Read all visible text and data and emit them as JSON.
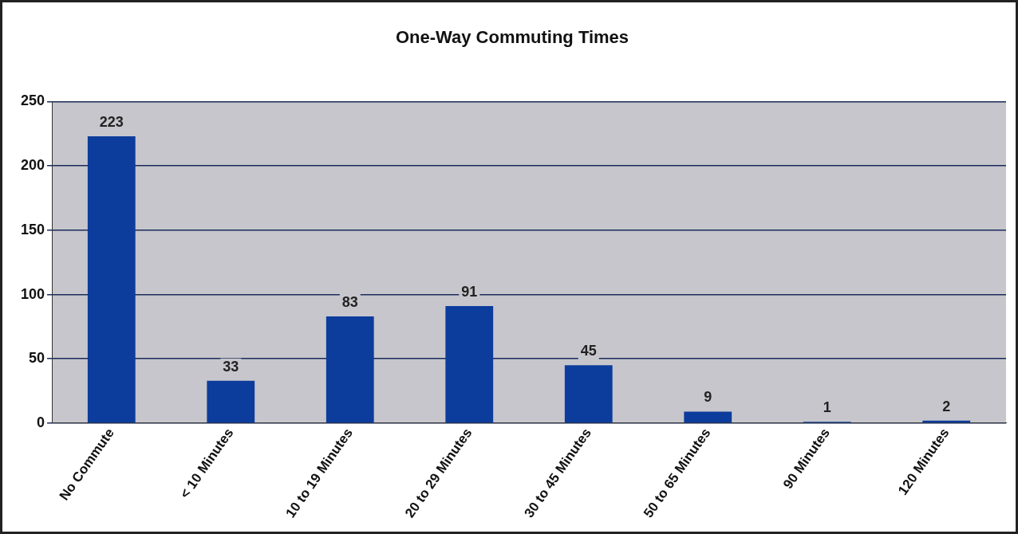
{
  "chart_data": {
    "type": "bar",
    "title": "One-Way Commuting Times",
    "categories": [
      "No Commute",
      "< 10 Minutes",
      "10 to 19 Minutes",
      "20 to 29 Minutes",
      "30 to 45 Minutes",
      "50 to 65 Minutes",
      "90 Minutes",
      "120 Minutes"
    ],
    "values": [
      223,
      33,
      83,
      91,
      45,
      9,
      1,
      2
    ],
    "color": "#0c3c9c",
    "ylim": [
      0,
      250
    ],
    "yticks": [
      0,
      50,
      100,
      150,
      200,
      250
    ],
    "grid": "y",
    "data_labels": true,
    "legend": false
  }
}
